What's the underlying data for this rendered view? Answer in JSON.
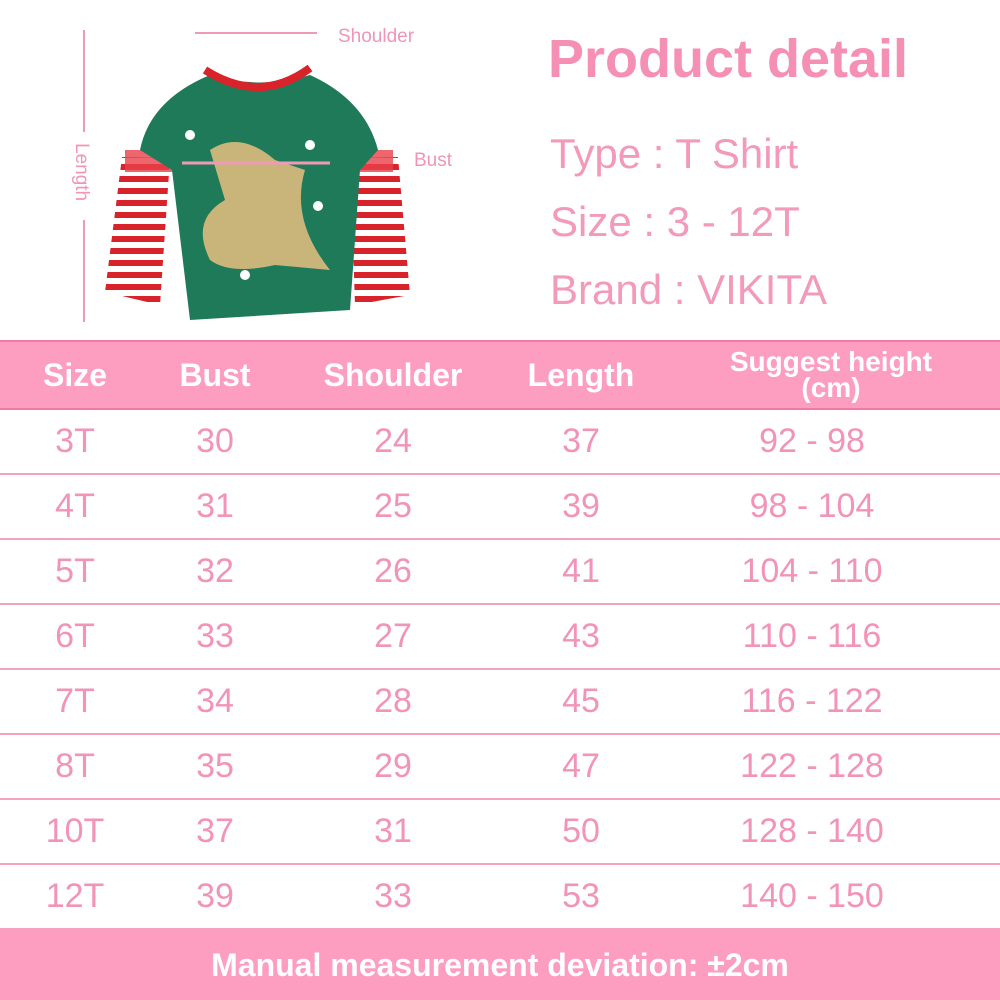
{
  "diagram": {
    "shoulder_label": "Shoulder",
    "bust_label": "Bust",
    "length_label": "Length"
  },
  "product": {
    "title": "Product detail",
    "type": "Type : T Shirt",
    "size": "Size : 3 - 12T",
    "brand": "Brand : VIKITA"
  },
  "table": {
    "headers": [
      "Size",
      "Bust",
      "Shoulder",
      "Length",
      "Suggest height\n(cm)"
    ],
    "header_height_line1": "Suggest height",
    "header_height_line2": "(cm)",
    "rows": [
      [
        "3T",
        "30",
        "24",
        "37",
        "92 - 98"
      ],
      [
        "4T",
        "31",
        "25",
        "39",
        "98 - 104"
      ],
      [
        "5T",
        "32",
        "26",
        "41",
        "104 - 110"
      ],
      [
        "6T",
        "33",
        "27",
        "43",
        "110 - 116"
      ],
      [
        "7T",
        "34",
        "28",
        "45",
        "116 - 122"
      ],
      [
        "8T",
        "35",
        "29",
        "47",
        "122 - 128"
      ],
      [
        "10T",
        "37",
        "31",
        "50",
        "128 - 140"
      ],
      [
        "12T",
        "39",
        "33",
        "53",
        "140 - 150"
      ]
    ]
  },
  "footer": {
    "note": "Manual measurement deviation: ±2cm"
  },
  "colors": {
    "accent": "#fd9dc0",
    "text": "#f293b8",
    "shirt": "#1f7a5a",
    "stripe": "#d8232a"
  }
}
